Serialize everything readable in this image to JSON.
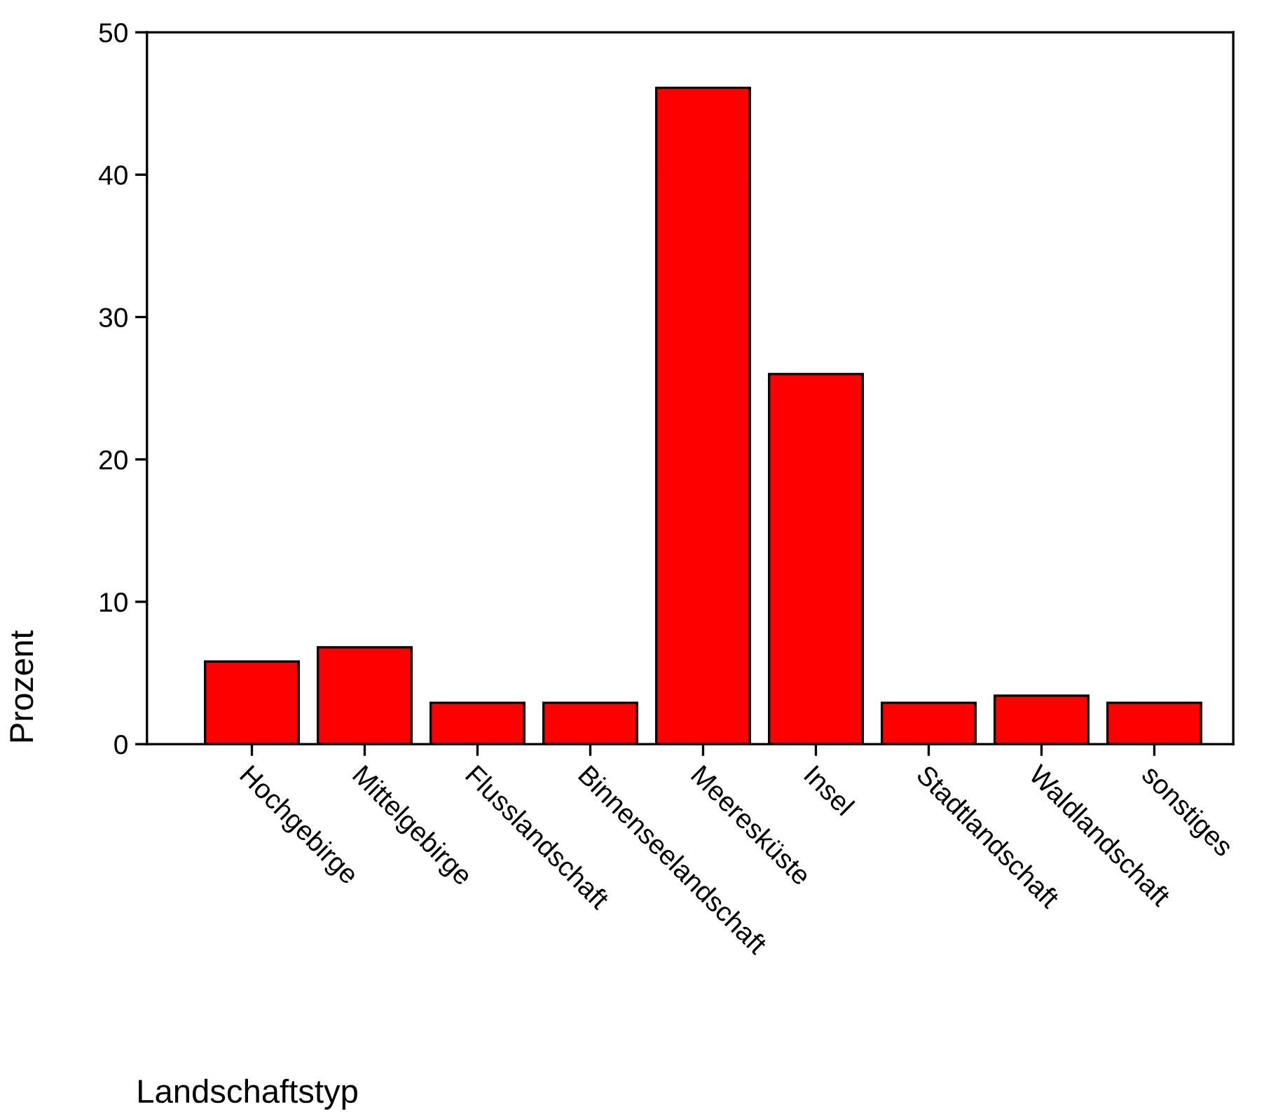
{
  "chart_data": {
    "type": "bar",
    "xlabel": "Landschaftstyp",
    "ylabel": "Prozent",
    "categories": [
      "Hochgebirge",
      "Mittelgebirge",
      "Flusslandschaft",
      "Binnenseelandschaft",
      "Meeresküste",
      "Insel",
      "Stadtlandschaft",
      "Waldlandschaft",
      "sonstiges"
    ],
    "values": [
      5.8,
      6.8,
      2.9,
      2.9,
      46.1,
      26.0,
      2.9,
      3.4,
      2.9
    ],
    "color": "#ff0000",
    "ylim": [
      0,
      50
    ],
    "yticks": [
      0,
      10,
      20,
      30,
      40,
      50
    ],
    "grid": false,
    "legend": false
  }
}
